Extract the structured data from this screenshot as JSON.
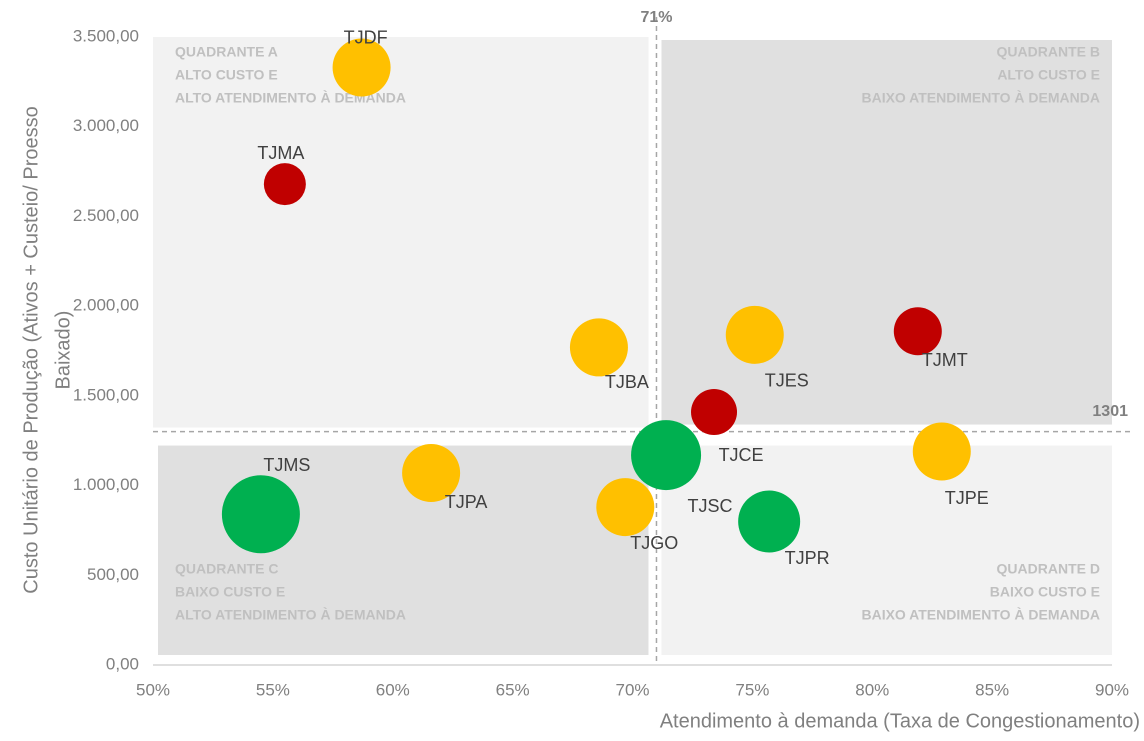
{
  "chart_data": {
    "type": "scatter",
    "xlabel": "Atendimento à demanda (Taxa de Congestionamento)",
    "ylabel": [
      "Custo Unitário de Produção (Ativos + Custeio/ Proesso",
      "Baixado)"
    ],
    "xlim": [
      50,
      90
    ],
    "ylim": [
      0,
      3500
    ],
    "xticks": [
      {
        "value": 50,
        "label": "50%"
      },
      {
        "value": 55,
        "label": "55%"
      },
      {
        "value": 60,
        "label": "60%"
      },
      {
        "value": 65,
        "label": "65%"
      },
      {
        "value": 70,
        "label": "70%"
      },
      {
        "value": 75,
        "label": "75%"
      },
      {
        "value": 80,
        "label": "80%"
      },
      {
        "value": 85,
        "label": "85%"
      },
      {
        "value": 90,
        "label": "90%"
      }
    ],
    "yticks": [
      {
        "value": 0,
        "label": "0,00"
      },
      {
        "value": 500,
        "label": "500,00"
      },
      {
        "value": 1000,
        "label": "1.000,00"
      },
      {
        "value": 1500,
        "label": "1.500,00"
      },
      {
        "value": 2000,
        "label": "2.000,00"
      },
      {
        "value": 2500,
        "label": "2.500,00"
      },
      {
        "value": 3000,
        "label": "3.000,00"
      },
      {
        "value": 3500,
        "label": "3.500,00"
      }
    ],
    "vline": {
      "value": 71,
      "label": "71%"
    },
    "hline": {
      "value": 1301,
      "label": "1301"
    },
    "quadrants": [
      [
        "QUADRANTE A",
        "ALTO CUSTO E",
        "ALTO ATENDIMENTO À DEMANDA"
      ],
      [
        "QUADRANTE B",
        "ALTO CUSTO E",
        "BAIXO ATENDIMENTO À DEMANDA"
      ],
      [
        "QUADRANTE C",
        "BAIXO CUSTO E",
        "ALTO ATENDIMENTO À DEMANDA"
      ],
      [
        "QUADRANTE D",
        "BAIXO CUSTO E",
        "BAIXO ATENDIMENTO À DEMANDA"
      ]
    ],
    "labels": [
      "TJDF",
      "TJMA",
      "TJBA",
      "TJES",
      "TJMT",
      "TJSC",
      "TJCE",
      "TJPE",
      "TJMS",
      "TJPA",
      "TJGO",
      "TJPR"
    ],
    "x": [
      58.7,
      55.5,
      68.6,
      75.1,
      81.9,
      73.4,
      71.4,
      82.9,
      54.5,
      61.6,
      69.7,
      75.7
    ],
    "y": [
      3330,
      2680,
      1770,
      1840,
      1860,
      1410,
      1170,
      1190,
      840,
      1070,
      880,
      800
    ],
    "sizes": [
      29,
      21,
      29,
      29,
      24,
      23,
      35,
      29,
      39,
      29,
      29,
      31
    ],
    "colors": [
      "#ffc000",
      "#c00000",
      "#ffc000",
      "#ffc000",
      "#c00000",
      "#c00000",
      "#00b050",
      "#ffc000",
      "#00b050",
      "#ffc000",
      "#ffc000",
      "#00b050"
    ]
  }
}
